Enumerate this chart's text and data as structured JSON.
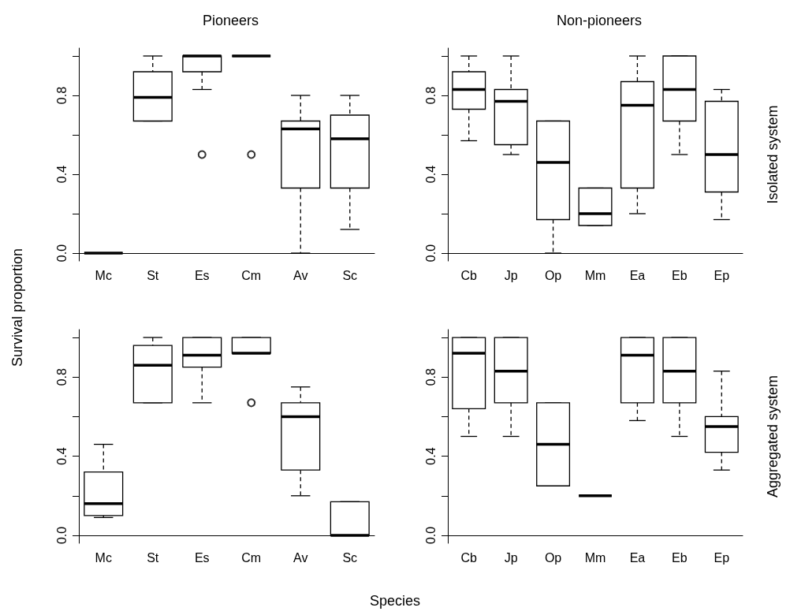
{
  "chart_data": [
    {
      "type": "box",
      "grid": false,
      "title": "Pioneers",
      "ylabel": "Survival proportion",
      "categories": [
        "Mc",
        "St",
        "Es",
        "Cm",
        "Av",
        "Sc"
      ],
      "ylim": [
        -0.04,
        1.04
      ],
      "yticks": [
        {
          "value": 0,
          "label": "0.0"
        },
        {
          "value": 0.2,
          "label": null
        },
        {
          "value": 0.4,
          "label": "0.4"
        },
        {
          "value": 0.6,
          "label": null
        },
        {
          "value": 0.8,
          "label": "0.8"
        },
        {
          "value": 1,
          "label": null
        }
      ],
      "boxes": [
        {
          "low": 0,
          "q1": 0,
          "median": 0,
          "q3": 0,
          "high": 0
        },
        {
          "low": 0.67,
          "q1": 0.67,
          "median": 0.79,
          "q3": 0.92,
          "high": 1
        },
        {
          "low": 0.83,
          "q1": 0.92,
          "median": 1,
          "q3": 1,
          "high": 1,
          "outliers": [
            0.5
          ]
        },
        {
          "low": 1,
          "q1": 1,
          "median": 1,
          "q3": 1,
          "high": 1,
          "outliers": [
            0.5
          ]
        },
        {
          "low": 0,
          "q1": 0.33,
          "median": 0.63,
          "q3": 0.67,
          "high": 0.8
        },
        {
          "low": 0.12,
          "q1": 0.33,
          "median": 0.58,
          "q3": 0.7,
          "high": 0.8
        }
      ]
    },
    {
      "type": "box",
      "grid": false,
      "title": "Non-pioneers",
      "y2label": "Isolated system",
      "categories": [
        "Cb",
        "Jp",
        "Op",
        "Mm",
        "Ea",
        "Eb",
        "Ep"
      ],
      "ylim": [
        -0.04,
        1.04
      ],
      "yticks": [
        {
          "value": 0,
          "label": "0.0"
        },
        {
          "value": 0.2,
          "label": null
        },
        {
          "value": 0.4,
          "label": "0.4"
        },
        {
          "value": 0.6,
          "label": null
        },
        {
          "value": 0.8,
          "label": "0.8"
        },
        {
          "value": 1,
          "label": null
        }
      ],
      "boxes": [
        {
          "low": 0.57,
          "q1": 0.73,
          "median": 0.83,
          "q3": 0.92,
          "high": 1
        },
        {
          "low": 0.5,
          "q1": 0.55,
          "median": 0.77,
          "q3": 0.83,
          "high": 1
        },
        {
          "low": 0,
          "q1": 0.17,
          "median": 0.46,
          "q3": 0.67,
          "high": 0.67
        },
        {
          "low": 0.14,
          "q1": 0.14,
          "median": 0.2,
          "q3": 0.33,
          "high": 0.33
        },
        {
          "low": 0.2,
          "q1": 0.33,
          "median": 0.75,
          "q3": 0.87,
          "high": 1
        },
        {
          "low": 0.5,
          "q1": 0.67,
          "median": 0.83,
          "q3": 1,
          "high": 1
        },
        {
          "low": 0.17,
          "q1": 0.31,
          "median": 0.5,
          "q3": 0.77,
          "high": 0.83
        }
      ]
    },
    {
      "type": "box",
      "grid": false,
      "xlabel": "Species",
      "categories": [
        "Mc",
        "St",
        "Es",
        "Cm",
        "Av",
        "Sc"
      ],
      "ylim": [
        -0.04,
        1.04
      ],
      "yticks": [
        {
          "value": 0,
          "label": "0.0"
        },
        {
          "value": 0.2,
          "label": null
        },
        {
          "value": 0.4,
          "label": "0.4"
        },
        {
          "value": 0.6,
          "label": null
        },
        {
          "value": 0.8,
          "label": "0.8"
        },
        {
          "value": 1,
          "label": null
        }
      ],
      "boxes": [
        {
          "low": 0.09,
          "q1": 0.1,
          "median": 0.16,
          "q3": 0.32,
          "high": 0.46
        },
        {
          "low": 0.67,
          "q1": 0.67,
          "median": 0.86,
          "q3": 0.96,
          "high": 1
        },
        {
          "low": 0.67,
          "q1": 0.85,
          "median": 0.91,
          "q3": 1,
          "high": 1
        },
        {
          "low": 0.92,
          "q1": 0.92,
          "median": 0.92,
          "q3": 1,
          "high": 1,
          "outliers": [
            0.67
          ]
        },
        {
          "low": 0.2,
          "q1": 0.33,
          "median": 0.6,
          "q3": 0.67,
          "high": 0.75
        },
        {
          "low": 0,
          "q1": 0,
          "median": 0,
          "q3": 0.17,
          "high": 0.17
        }
      ]
    },
    {
      "type": "box",
      "grid": false,
      "y2label": "Aggregated system",
      "categories": [
        "Cb",
        "Jp",
        "Op",
        "Mm",
        "Ea",
        "Eb",
        "Ep"
      ],
      "ylim": [
        -0.04,
        1.04
      ],
      "yticks": [
        {
          "value": 0,
          "label": "0.0"
        },
        {
          "value": 0.2,
          "label": null
        },
        {
          "value": 0.4,
          "label": "0.4"
        },
        {
          "value": 0.6,
          "label": null
        },
        {
          "value": 0.8,
          "label": "0.8"
        },
        {
          "value": 1,
          "label": null
        }
      ],
      "boxes": [
        {
          "low": 0.5,
          "q1": 0.64,
          "median": 0.92,
          "q3": 1,
          "high": 1
        },
        {
          "low": 0.5,
          "q1": 0.67,
          "median": 0.83,
          "q3": 1,
          "high": 1
        },
        {
          "low": 0.25,
          "q1": 0.25,
          "median": 0.46,
          "q3": 0.67,
          "high": 0.67
        },
        {
          "low": 0.2,
          "q1": 0.2,
          "median": 0.2,
          "q3": 0.2,
          "high": 0.2
        },
        {
          "low": 0.58,
          "q1": 0.67,
          "median": 0.91,
          "q3": 1,
          "high": 1
        },
        {
          "low": 0.5,
          "q1": 0.67,
          "median": 0.83,
          "q3": 1,
          "high": 1
        },
        {
          "low": 0.33,
          "q1": 0.42,
          "median": 0.55,
          "q3": 0.6,
          "high": 0.83
        }
      ]
    }
  ]
}
